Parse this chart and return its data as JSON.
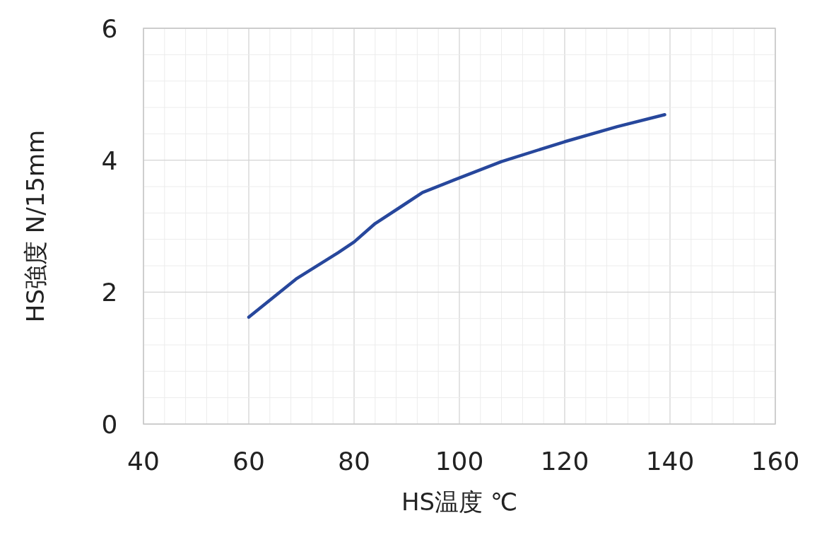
{
  "chart_data": {
    "type": "line",
    "xlabel": "HS温度 ℃",
    "ylabel": "HS強度 N/15mm",
    "x": [
      60,
      69,
      77,
      80,
      84,
      89,
      93,
      99,
      108,
      120,
      130,
      139
    ],
    "series": [
      {
        "color": "#27479c",
        "values": [
          1.62,
          2.2,
          2.6,
          2.76,
          3.04,
          3.3,
          3.51,
          3.7,
          3.98,
          4.28,
          4.51,
          4.69
        ]
      }
    ],
    "xlim": [
      40,
      160
    ],
    "xticks": [
      40,
      60,
      80,
      100,
      120,
      140,
      160
    ],
    "ylim": [
      0,
      6
    ],
    "yticks": [
      0,
      2,
      4,
      6
    ],
    "grid": true,
    "marker": "none",
    "line_style": "solid"
  }
}
